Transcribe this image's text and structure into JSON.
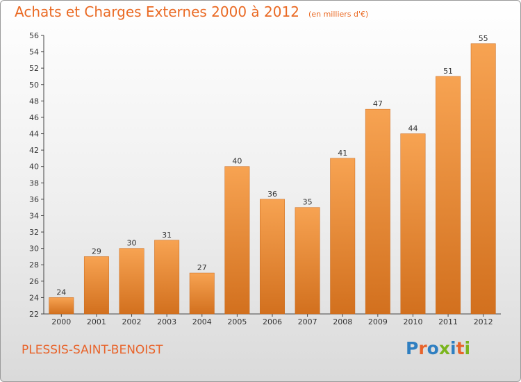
{
  "header": {
    "title": "Achats et Charges Externes 2000 à 2012",
    "unit": "(en milliers d'€)"
  },
  "footer": {
    "commune": "PLESSIS-SAINT-BENOIST",
    "logo_text": "Proxiti",
    "logo_colors": [
      "#2f7fc1",
      "#e8632a",
      "#2f7fc1",
      "#7ab51d",
      "#2f7fc1",
      "#e8632a",
      "#7ab51d"
    ]
  },
  "colors": {
    "accent": "#ea6a24",
    "bar_top": "#f7a352",
    "bar_bottom": "#d2701e"
  },
  "chart_data": {
    "type": "bar",
    "title": "Achats et Charges Externes 2000 à 2012",
    "subtitle": "(en milliers d'€)",
    "categories": [
      "2000",
      "2001",
      "2002",
      "2003",
      "2004",
      "2005",
      "2006",
      "2007",
      "2008",
      "2009",
      "2010",
      "2011",
      "2012"
    ],
    "values": [
      24,
      29,
      30,
      31,
      27,
      40,
      36,
      35,
      41,
      47,
      44,
      51,
      55
    ],
    "ylim": [
      22,
      56
    ],
    "yticks": [
      22,
      24,
      26,
      28,
      30,
      32,
      34,
      36,
      38,
      40,
      42,
      44,
      46,
      48,
      50,
      52,
      54,
      56
    ],
    "xlabel": "",
    "ylabel": "",
    "grid": false,
    "data_labels": true
  }
}
